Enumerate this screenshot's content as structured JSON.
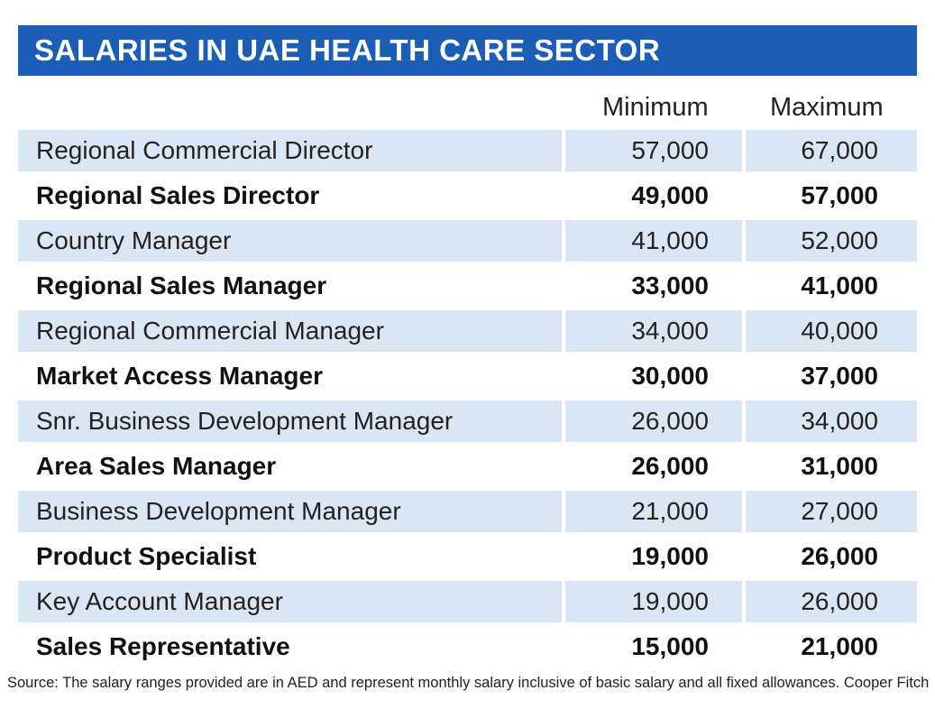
{
  "title": "SALARIES IN UAE HEALTH CARE SECTOR",
  "source": "Source: The salary ranges provided are in AED and represent monthly salary inclusive of basic salary and all fixed allowances. Cooper Fitch",
  "colors": {
    "title_bar": "#1c5eb6",
    "title_text": "#ffffff",
    "row_shade": "#dae6f4",
    "text": "#222222"
  },
  "chart_data": {
    "type": "table",
    "title": "SALARIES IN UAE HEALTH CARE SECTOR",
    "columns": [
      "",
      "Minimum",
      "Maximum"
    ],
    "rows": [
      {
        "role": "Regional Commercial Director",
        "minimum": "57,000",
        "maximum": "67,000"
      },
      {
        "role": "Regional Sales Director",
        "minimum": "49,000",
        "maximum": "57,000"
      },
      {
        "role": "Country Manager",
        "minimum": "41,000",
        "maximum": "52,000"
      },
      {
        "role": "Regional Sales Manager",
        "minimum": "33,000",
        "maximum": "41,000"
      },
      {
        "role": "Regional Commercial Manager",
        "minimum": "34,000",
        "maximum": "40,000"
      },
      {
        "role": "Market Access Manager",
        "minimum": "30,000",
        "maximum": "37,000"
      },
      {
        "role": "Snr. Business Development Manager",
        "minimum": "26,000",
        "maximum": "34,000"
      },
      {
        "role": "Area Sales Manager",
        "minimum": "26,000",
        "maximum": "31,000"
      },
      {
        "role": "Business Development Manager",
        "minimum": "21,000",
        "maximum": "27,000"
      },
      {
        "role": "Product Specialist",
        "minimum": "19,000",
        "maximum": "26,000"
      },
      {
        "role": "Key Account Manager",
        "minimum": "19,000",
        "maximum": "26,000"
      },
      {
        "role": "Sales Representative",
        "minimum": "15,000",
        "maximum": "21,000"
      }
    ]
  }
}
